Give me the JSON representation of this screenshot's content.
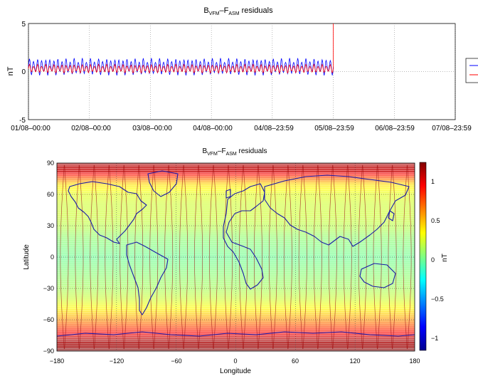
{
  "top_chart": {
    "title": {
      "base": "B",
      "sub1": "VFM",
      "mid": "–F",
      "sub2": "ASM",
      "tail": " residuals"
    },
    "ylabel": "nT",
    "yticks": [
      "5",
      "0",
      "-5"
    ],
    "xticks": [
      "01/08–00:00",
      "02/08–00:00",
      "03/08–00:00",
      "04/08–00:00",
      "04/08–23:59",
      "05/08–23:59",
      "06/08–23:59",
      "07/08–23:59"
    ]
  },
  "map_chart": {
    "title": {
      "base": "B",
      "sub1": "VFM",
      "mid": "–F",
      "sub2": "ASM",
      "tail": " residuals"
    },
    "xlabel": "Longitude",
    "ylabel": "Latitude",
    "xticks": [
      "−180",
      "−120",
      "−60",
      "0",
      "60",
      "120",
      "180"
    ],
    "yticks": [
      "90",
      "60",
      "30",
      "0",
      "−30",
      "−60",
      "−90"
    ],
    "colorbar_label": "nT",
    "colorbar_ticks": [
      "1",
      "0.5",
      "0",
      "−0.5",
      "−1"
    ]
  },
  "chart_data": [
    {
      "type": "line",
      "title": "BVFM–FASM residuals",
      "ylabel": "nT",
      "ylim": [
        -5,
        5
      ],
      "x_ticks": [
        "01/08–00:00",
        "02/08–00:00",
        "03/08–00:00",
        "04/08–00:00",
        "04/08–23:59",
        "05/08–23:59",
        "06/08–23:59",
        "07/08–23:59"
      ],
      "x_range_days": [
        0,
        7
      ],
      "data_end_day": 5.0,
      "grid": true,
      "legend": "right",
      "series": [
        {
          "color": "#0000ff",
          "mean": 0.5,
          "amplitude": 0.9,
          "approx_oscillations": 75
        },
        {
          "color": "#ff0000",
          "mean": 0.3,
          "amplitude": 0.45,
          "approx_oscillations": 75
        }
      ],
      "spike_day": 5.0,
      "spike_range": [
        0.3,
        5
      ]
    },
    {
      "type": "heatmap",
      "title": "BVFM–FASM residuals",
      "xlabel": "Longitude",
      "ylabel": "Latitude",
      "xlim": [
        -180,
        180
      ],
      "ylim": [
        -90,
        90
      ],
      "colorbar": {
        "label": "nT",
        "range": [
          -1.3,
          1.3
        ],
        "ticks": [
          1,
          0.5,
          0,
          -0.5,
          -1
        ]
      },
      "value_by_latitude": {
        "lat": [
          90,
          80,
          70,
          60,
          50,
          40,
          30,
          20,
          10,
          0,
          -10,
          -20,
          -30,
          -40,
          -50,
          -60,
          -70,
          -80,
          -90
        ],
        "value": [
          1.2,
          1.0,
          0.4,
          0.25,
          0.2,
          0.2,
          0.15,
          0.05,
          0.0,
          -0.05,
          0.0,
          0.05,
          0.1,
          0.2,
          0.35,
          0.6,
          0.9,
          1.2,
          1.3
        ]
      },
      "orbit_track_columns": 24,
      "overlay": "coastlines"
    }
  ]
}
